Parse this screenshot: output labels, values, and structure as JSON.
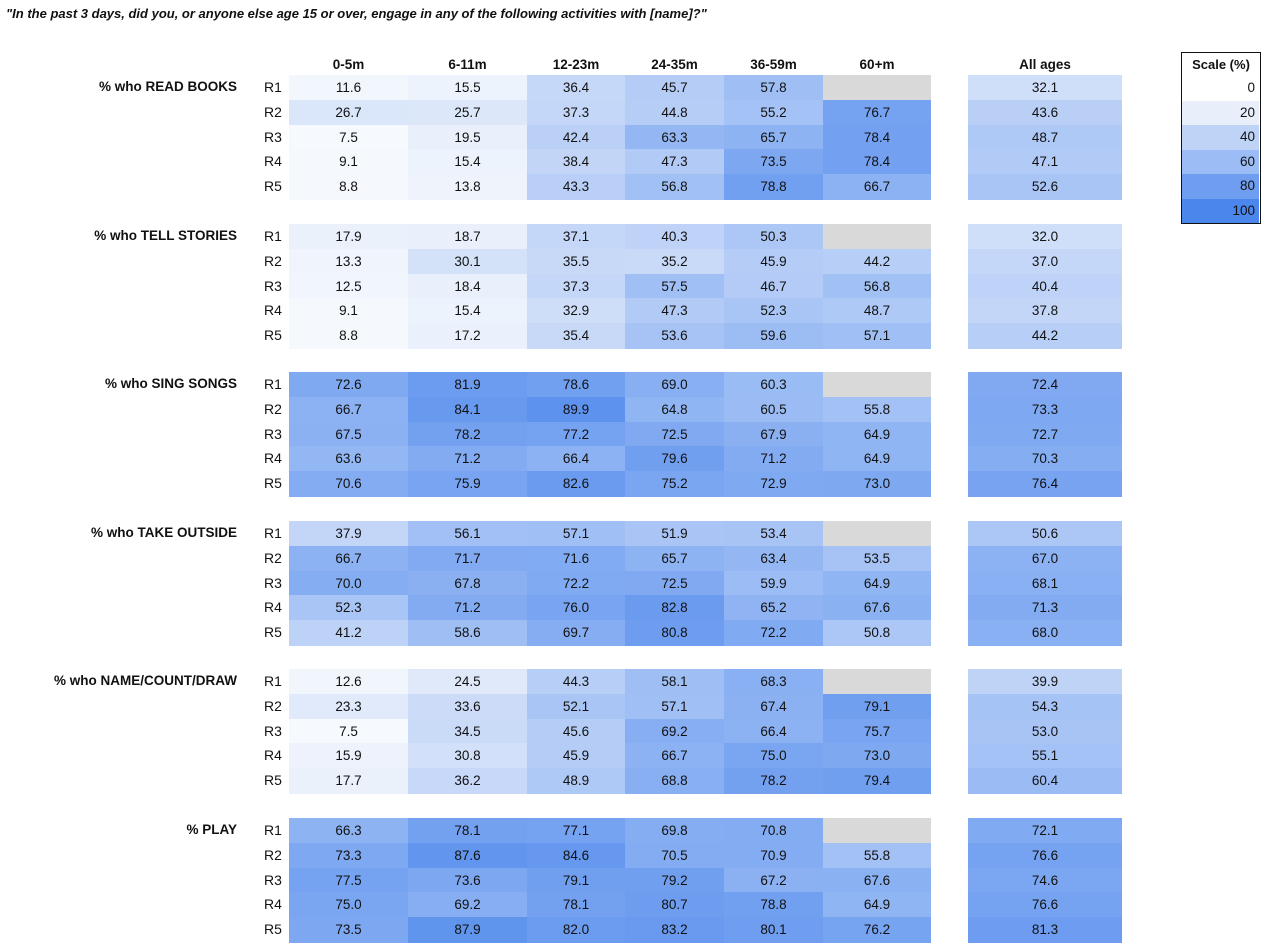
{
  "chart_data": {
    "type": "heatmap",
    "title": "\"In the past 3 days, did you, or anyone else age 15 or over, engage in any of the following activities with [name]?\"",
    "age_columns": [
      "0-5m",
      "6-11m",
      "12-23m",
      "24-35m",
      "36-59m",
      "60+m"
    ],
    "total_column": "All ages",
    "rows": [
      "R1",
      "R2",
      "R3",
      "R4",
      "R5"
    ],
    "missing_color": "#d9d9d9",
    "color_scale": {
      "title": "Scale (%)",
      "stops": [
        0,
        20,
        40,
        60,
        80,
        100
      ],
      "colors": [
        "#ffffff",
        "#e8effb",
        "#bfd3f7",
        "#9bbcf4",
        "#6f9ef0",
        "#4a86ec"
      ]
    },
    "groups": [
      {
        "label": "% who READ BOOKS",
        "values": [
          [
            11.6,
            15.5,
            36.4,
            45.7,
            57.8,
            null
          ],
          [
            26.7,
            25.7,
            37.3,
            44.8,
            55.2,
            76.7
          ],
          [
            7.5,
            19.5,
            42.4,
            63.3,
            65.7,
            78.4
          ],
          [
            9.1,
            15.4,
            38.4,
            47.3,
            73.5,
            78.4
          ],
          [
            8.8,
            13.8,
            43.3,
            56.8,
            78.8,
            66.7
          ]
        ],
        "all_ages": [
          32.1,
          43.6,
          48.7,
          47.1,
          52.6
        ]
      },
      {
        "label": "% who TELL STORIES",
        "values": [
          [
            17.9,
            18.7,
            37.1,
            40.3,
            50.3,
            null
          ],
          [
            13.3,
            30.1,
            35.5,
            35.2,
            45.9,
            44.2
          ],
          [
            12.5,
            18.4,
            37.3,
            57.5,
            46.7,
            56.8
          ],
          [
            9.1,
            15.4,
            32.9,
            47.3,
            52.3,
            48.7
          ],
          [
            8.8,
            17.2,
            35.4,
            53.6,
            59.6,
            57.1
          ]
        ],
        "all_ages": [
          32.0,
          37.0,
          40.4,
          37.8,
          44.2
        ]
      },
      {
        "label": "% who SING SONGS",
        "values": [
          [
            72.6,
            81.9,
            78.6,
            69.0,
            60.3,
            null
          ],
          [
            66.7,
            84.1,
            89.9,
            64.8,
            60.5,
            55.8
          ],
          [
            67.5,
            78.2,
            77.2,
            72.5,
            67.9,
            64.9
          ],
          [
            63.6,
            71.2,
            66.4,
            79.6,
            71.2,
            64.9
          ],
          [
            70.6,
            75.9,
            82.6,
            75.2,
            72.9,
            73.0
          ]
        ],
        "all_ages": [
          72.4,
          73.3,
          72.7,
          70.3,
          76.4
        ]
      },
      {
        "label": "% who TAKE OUTSIDE",
        "values": [
          [
            37.9,
            56.1,
            57.1,
            51.9,
            53.4,
            null
          ],
          [
            66.7,
            71.7,
            71.6,
            65.7,
            63.4,
            53.5
          ],
          [
            70.0,
            67.8,
            72.2,
            72.5,
            59.9,
            64.9
          ],
          [
            52.3,
            71.2,
            76.0,
            82.8,
            65.2,
            67.6
          ],
          [
            41.2,
            58.6,
            69.7,
            80.8,
            72.2,
            50.8
          ]
        ],
        "all_ages": [
          50.6,
          67.0,
          68.1,
          71.3,
          68.0
        ]
      },
      {
        "label": "% who NAME/COUNT/DRAW",
        "values": [
          [
            12.6,
            24.5,
            44.3,
            58.1,
            68.3,
            null
          ],
          [
            23.3,
            33.6,
            52.1,
            57.1,
            67.4,
            79.1
          ],
          [
            7.5,
            34.5,
            45.6,
            69.2,
            66.4,
            75.7
          ],
          [
            15.9,
            30.8,
            45.9,
            66.7,
            75.0,
            73.0
          ],
          [
            17.7,
            36.2,
            48.9,
            68.8,
            78.2,
            79.4
          ]
        ],
        "all_ages": [
          39.9,
          54.3,
          53.0,
          55.1,
          60.4
        ]
      },
      {
        "label": "% PLAY",
        "values": [
          [
            66.3,
            78.1,
            77.1,
            69.8,
            70.8,
            null
          ],
          [
            73.3,
            87.6,
            84.6,
            70.5,
            70.9,
            55.8
          ],
          [
            77.5,
            73.6,
            79.1,
            79.2,
            67.2,
            67.6
          ],
          [
            75.0,
            69.2,
            78.1,
            80.7,
            78.8,
            64.9
          ],
          [
            73.5,
            87.9,
            82.0,
            83.2,
            80.1,
            76.2
          ]
        ],
        "all_ages": [
          72.1,
          76.6,
          74.6,
          76.6,
          81.3
        ]
      }
    ]
  }
}
